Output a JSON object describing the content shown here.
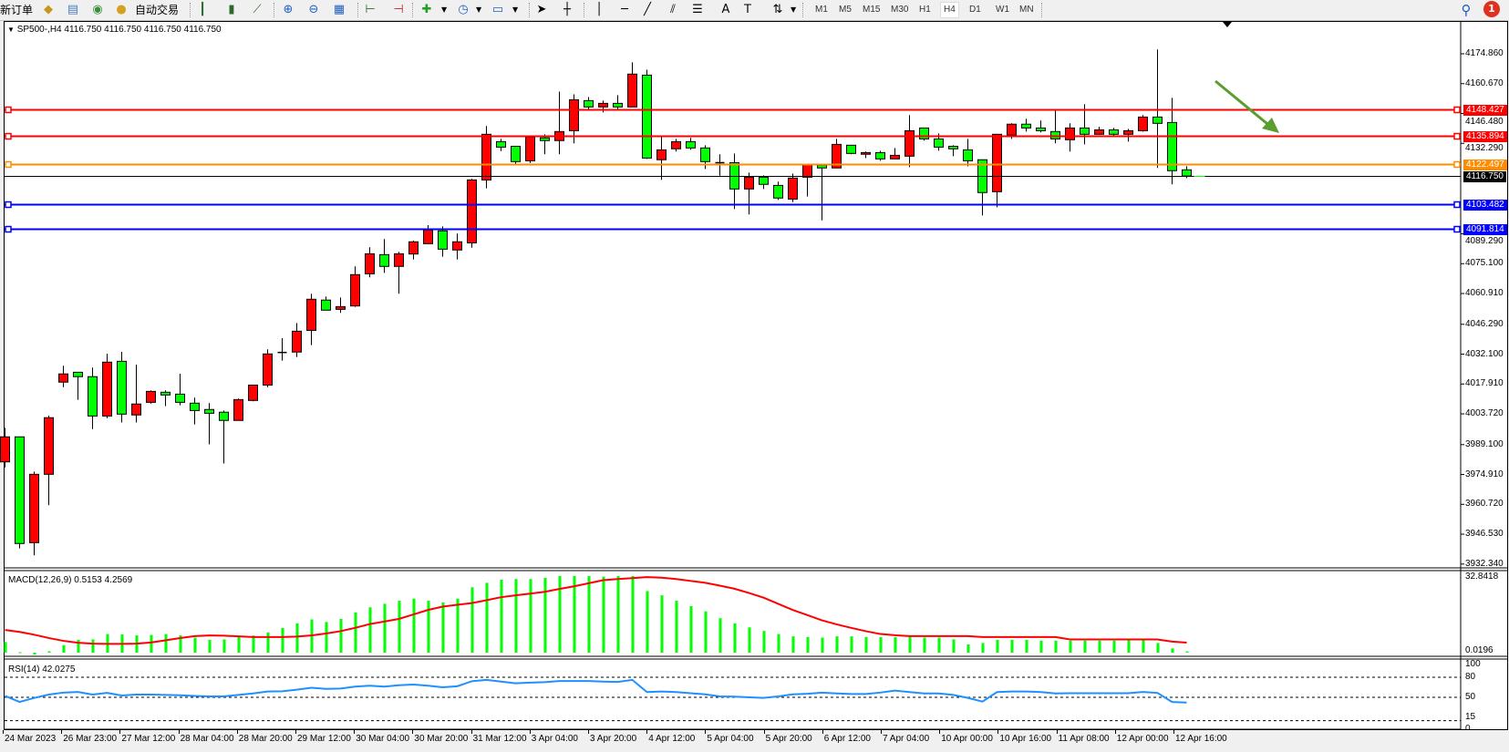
{
  "toolbar": {
    "new_order": "新订单",
    "auto_trading": "自动交易",
    "timeframes": [
      "M1",
      "M5",
      "M15",
      "M30",
      "H1",
      "H4",
      "D1",
      "W1",
      "MN"
    ],
    "selected_timeframe": "H4",
    "notification_count": "1",
    "icons": [
      "history-center-icon",
      "market-watch-icon",
      "signal-icon",
      "auto-trading-icon",
      "bar-chart-icon",
      "candlestick-icon",
      "line-chart-icon",
      "zoom-in-icon",
      "zoom-out-icon",
      "tile-windows-icon",
      "chart-shift-icon",
      "autoscroll-icon",
      "new-chart-icon",
      "period-icon",
      "template-icon",
      "cursor-icon",
      "crosshair-icon",
      "vertical-line-icon",
      "horizontal-line-icon",
      "trendline-icon",
      "equidistant-channel-icon",
      "fibonacci-icon",
      "text-icon",
      "text-label-icon",
      "arrows-icon",
      "search-icon",
      "notification-icon"
    ]
  },
  "chart": {
    "header": "SP500-,H4  4116.750 4116.750 4116.750 4116.750",
    "macd_label": "MACD(12,26,9) 0.5153 4.2569",
    "rsi_label": "RSI(14) 42.0275",
    "price_ticks": [
      "4174.860",
      "4160.670",
      "4146.480",
      "4132.290",
      "4089.290",
      "4075.100",
      "4060.910",
      "4046.290",
      "4032.100",
      "4017.910",
      "4003.720",
      "3989.100",
      "3974.910",
      "3960.720",
      "3946.530",
      "3932.340"
    ],
    "macd_ticks": [
      "32.8418",
      "0.0196"
    ],
    "rsi_ticks": [
      "100",
      "80",
      "50",
      "15",
      "0"
    ],
    "time_labels": [
      "24 Mar 2023",
      "26 Mar 23:00",
      "27 Mar 12:00",
      "28 Mar 04:00",
      "28 Mar 20:00",
      "29 Mar 12:00",
      "30 Mar 04:00",
      "30 Mar 20:00",
      "31 Mar 12:00",
      "3 Apr 04:00",
      "3 Apr 20:00",
      "4 Apr 12:00",
      "5 Apr 04:00",
      "5 Apr 20:00",
      "6 Apr 12:00",
      "7 Apr 04:00",
      "10 Apr 00:00",
      "10 Apr 16:00",
      "11 Apr 08:00",
      "12 Apr 00:00",
      "12 Apr 16:00"
    ],
    "levels": [
      {
        "price": 4148.427,
        "label": "4148.427",
        "color": "#ff0000"
      },
      {
        "price": 4135.894,
        "label": "4135.894",
        "color": "#ff0000"
      },
      {
        "price": 4122.497,
        "label": "4122.497",
        "color": "#ff8c00"
      },
      {
        "price": 4103.482,
        "label": "4103.482",
        "color": "#0000ff"
      },
      {
        "price": 4091.814,
        "label": "4091.814",
        "color": "#0000ff"
      }
    ],
    "bid": {
      "price": 4116.75,
      "label": "4116.750",
      "color": "#000000"
    },
    "colors": {
      "up": "#ff0000",
      "down": "#00ff00",
      "macd_hist": "#00ff00",
      "macd_signal": "#ff0000",
      "rsi": "#1e90ff",
      "arrow": "#5a9e2e"
    }
  },
  "chart_data": {
    "type": "candlestick",
    "symbol": "SP500-",
    "timeframe": "H4",
    "ylim": [
      3932.34,
      4174.86
    ],
    "ohlc": [
      [
        3980.9,
        3997.1,
        3978.3,
        3992.8
      ],
      [
        3992.8,
        3992.8,
        3939.8,
        3942.1
      ],
      [
        3942.5,
        3976.3,
        3936.5,
        3975.0
      ],
      [
        3975.0,
        4002.9,
        3960.3,
        4001.9
      ],
      [
        4018.8,
        4026.6,
        4016.4,
        4022.7
      ],
      [
        4023.5,
        4023.5,
        4010.4,
        4021.4
      ],
      [
        4021.4,
        4025.8,
        3996.5,
        4002.7
      ],
      [
        4002.7,
        4032.3,
        4001.7,
        4028.3
      ],
      [
        4028.7,
        4033.2,
        3999.6,
        4003.6
      ],
      [
        4003.2,
        4027.1,
        3999.6,
        4008.4
      ],
      [
        4009.2,
        4014.9,
        4008.6,
        4014.4
      ],
      [
        4014.0,
        4014.9,
        4007.4,
        4012.7
      ],
      [
        4013.1,
        4022.8,
        4007.8,
        4009.2
      ],
      [
        4008.8,
        4011.4,
        3998.7,
        4005.3
      ],
      [
        4005.8,
        4008.8,
        3989.2,
        4004.0
      ],
      [
        4004.5,
        4005.3,
        3980.1,
        4000.6
      ],
      [
        4000.6,
        4011.0,
        4000.6,
        4010.5
      ],
      [
        4010.1,
        4017.4,
        4009.7,
        4017.4
      ],
      [
        4017.4,
        4034.4,
        4016.4,
        4032.2
      ],
      [
        4032.9,
        4039.7,
        4029.0,
        4032.9
      ],
      [
        4033.1,
        4046.9,
        4030.7,
        4043.0
      ],
      [
        4043.4,
        4060.8,
        4036.4,
        4058.2
      ],
      [
        4057.8,
        4059.5,
        4053.0,
        4053.0
      ],
      [
        4053.4,
        4059.0,
        4051.7,
        4054.7
      ],
      [
        4055.0,
        4073.8,
        4054.6,
        4069.9
      ],
      [
        4070.3,
        4082.9,
        4068.6,
        4079.8
      ],
      [
        4079.4,
        4086.8,
        4070.7,
        4073.8
      ],
      [
        4073.8,
        4080.7,
        4060.8,
        4079.8
      ],
      [
        4079.7,
        4086.1,
        4077.1,
        4085.5
      ],
      [
        4084.6,
        4093.4,
        4084.6,
        4091.1
      ],
      [
        4090.7,
        4092.8,
        4078.4,
        4082.0
      ],
      [
        4081.6,
        4089.4,
        4077.1,
        4085.5
      ],
      [
        4085.0,
        4115.4,
        4082.7,
        4114.9
      ],
      [
        4114.9,
        4140.5,
        4110.9,
        4136.6
      ],
      [
        4133.1,
        4134.4,
        4128.6,
        4130.5
      ],
      [
        4130.9,
        4130.9,
        4121.9,
        4123.6
      ],
      [
        4124.0,
        4135.3,
        4123.0,
        4135.3
      ],
      [
        4134.9,
        4136.6,
        4127.1,
        4133.6
      ],
      [
        4133.6,
        4156.9,
        4127.1,
        4137.9
      ],
      [
        4138.3,
        4155.6,
        4132.3,
        4153.0
      ],
      [
        4152.6,
        4154.3,
        4147.9,
        4149.6
      ],
      [
        4149.6,
        4152.6,
        4147.0,
        4151.3
      ],
      [
        4151.3,
        4155.2,
        4147.9,
        4149.6
      ],
      [
        4149.6,
        4170.8,
        4149.6,
        4165.2
      ],
      [
        4164.7,
        4167.3,
        4124.9,
        4125.3
      ],
      [
        4124.5,
        4135.7,
        4114.9,
        4129.2
      ],
      [
        4129.7,
        4134.4,
        4128.4,
        4133.1
      ],
      [
        4133.1,
        4134.9,
        4129.2,
        4130.1
      ],
      [
        4130.1,
        4131.4,
        4120.1,
        4123.6
      ],
      [
        4123.1,
        4127.1,
        4116.9,
        4123.1
      ],
      [
        4123.1,
        4127.5,
        4101.1,
        4110.6
      ],
      [
        4110.6,
        4118.4,
        4098.5,
        4116.2
      ],
      [
        4116.2,
        4117.1,
        4110.6,
        4112.8
      ],
      [
        4112.3,
        4114.1,
        4105.4,
        4106.3
      ],
      [
        4105.8,
        4117.9,
        4104.4,
        4115.8
      ],
      [
        4116.2,
        4122.3,
        4107.0,
        4122.3
      ],
      [
        4121.9,
        4121.9,
        4095.7,
        4120.6
      ],
      [
        4120.6,
        4134.4,
        4120.6,
        4131.8
      ],
      [
        4131.4,
        4131.4,
        4127.1,
        4127.5
      ],
      [
        4127.1,
        4128.4,
        4125.3,
        4127.9
      ],
      [
        4127.9,
        4128.8,
        4124.0,
        4124.9
      ],
      [
        4124.9,
        4130.1,
        4124.9,
        4126.6
      ],
      [
        4126.2,
        4145.7,
        4121.0,
        4138.3
      ],
      [
        4139.6,
        4139.6,
        4133.6,
        4134.4
      ],
      [
        4134.4,
        4137.0,
        4128.8,
        4130.5
      ],
      [
        4130.9,
        4131.4,
        4126.2,
        4129.7
      ],
      [
        4129.2,
        4134.4,
        4121.4,
        4124.0
      ],
      [
        4124.5,
        4124.5,
        4098.0,
        4108.9
      ],
      [
        4109.3,
        4136.6,
        4101.9,
        4136.6
      ],
      [
        4136.2,
        4141.8,
        4134.4,
        4141.4
      ],
      [
        4141.4,
        4144.0,
        4137.9,
        4139.6
      ],
      [
        4139.6,
        4143.1,
        4137.5,
        4138.3
      ],
      [
        4137.9,
        4148.3,
        4132.3,
        4134.4
      ],
      [
        4134.0,
        4141.8,
        4128.4,
        4139.6
      ],
      [
        4139.6,
        4150.9,
        4131.8,
        4136.6
      ],
      [
        4136.6,
        4140.1,
        4136.6,
        4138.7
      ],
      [
        4138.7,
        4139.6,
        4135.3,
        4136.6
      ],
      [
        4136.6,
        4139.2,
        4133.1,
        4138.3
      ],
      [
        4138.3,
        4145.7,
        4137.9,
        4144.8
      ],
      [
        4144.8,
        4176.9,
        4120.6,
        4141.8
      ],
      [
        4142.2,
        4153.9,
        4112.8,
        4119.3
      ],
      [
        4119.7,
        4121.4,
        4115.8,
        4116.75
      ]
    ],
    "macd": {
      "ylim": [
        0,
        32.8418
      ],
      "histogram": [
        4.5,
        0.2,
        -0.8,
        0.6,
        3.2,
        5.4,
        5.6,
        7.9,
        7.7,
        7.3,
        7.5,
        7.9,
        7.3,
        6.4,
        5.4,
        5.6,
        6.6,
        7.3,
        8.6,
        10.5,
        12.4,
        14.1,
        13.0,
        14.3,
        17.1,
        19.2,
        20.7,
        22.0,
        22.9,
        22.0,
        21.3,
        22.9,
        27.7,
        29.6,
        30.9,
        31.2,
        31.2,
        31.7,
        32.5,
        32.5,
        32.5,
        32.2,
        32.5,
        32.5,
        26.1,
        24.3,
        22.0,
        19.7,
        17.5,
        14.6,
        12.4,
        10.7,
        9.2,
        7.9,
        6.9,
        6.6,
        6.4,
        6.9,
        6.9,
        6.6,
        6.6,
        6.6,
        6.9,
        6.4,
        6.4,
        5.6,
        3.5,
        4.1,
        5.4,
        5.4,
        5.4,
        5.1,
        5.1,
        5.1,
        5.1,
        5.1,
        5.1,
        5.4,
        5.4,
        4.1,
        1.8,
        0.5153
      ],
      "signal": [
        9.6,
        8.8,
        7.6,
        6.2,
        5.0,
        4.2,
        3.8,
        3.7,
        3.7,
        3.8,
        4.3,
        5.2,
        6.2,
        7.0,
        7.3,
        7.2,
        6.9,
        6.6,
        6.6,
        6.6,
        6.8,
        7.3,
        8.1,
        9.1,
        10.5,
        12.1,
        13.2,
        14.3,
        16.2,
        18.1,
        19.5,
        20.3,
        21.0,
        22.2,
        23.5,
        24.3,
        25.0,
        25.8,
        27.0,
        28.1,
        29.4,
        30.7,
        31.2,
        31.6,
        32.0,
        31.8,
        31.2,
        30.4,
        29.6,
        28.4,
        27.1,
        25.3,
        23.3,
        20.7,
        18.1,
        15.9,
        13.7,
        12.0,
        10.5,
        9.1,
        7.9,
        7.4,
        7.0,
        7.0,
        7.0,
        7.0,
        7.0,
        6.6,
        6.6,
        6.6,
        6.6,
        6.6,
        6.6,
        5.6,
        5.6,
        5.6,
        5.6,
        5.6,
        5.6,
        5.6,
        4.7,
        4.2569
      ]
    },
    "rsi": {
      "ylim": [
        0,
        100
      ],
      "levels": [
        80,
        50,
        15
      ],
      "values": [
        52,
        43,
        49,
        54,
        57,
        58,
        54,
        56.5,
        52.6,
        54,
        54,
        53.5,
        53,
        52,
        51.3,
        51.3,
        53.5,
        55.7,
        58.7,
        59,
        61.3,
        64.3,
        62.6,
        63,
        66,
        67.4,
        66,
        68,
        69,
        67.4,
        65,
        66.5,
        74,
        76,
        73.5,
        70.9,
        72,
        72.6,
        74.3,
        74.3,
        74.3,
        73.5,
        73,
        76,
        57.8,
        58.7,
        57.8,
        56,
        54.3,
        51.3,
        50.9,
        50,
        49.1,
        51.3,
        54.3,
        55.2,
        57,
        55.7,
        54.8,
        54.8,
        57,
        60,
        57.8,
        55.7,
        55.7,
        53.5,
        49.1,
        43.5,
        57.8,
        58.7,
        58.7,
        57.8,
        55.7,
        56,
        56,
        56,
        56,
        56,
        58,
        56.5,
        43,
        42.0275
      ]
    }
  }
}
